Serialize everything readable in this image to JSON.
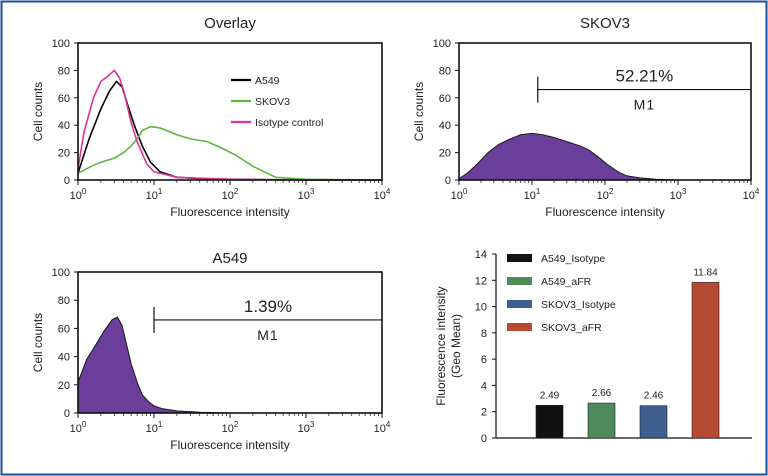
{
  "chart_data": [
    {
      "id": "overlay",
      "type": "histogram-overlay",
      "title": "Overlay",
      "xlabel": "Fluorescence intensity",
      "ylabel": "Cell counts",
      "x_scale": "log10",
      "xlim": [
        1,
        10000
      ],
      "ylim": [
        0,
        100
      ],
      "x_ticks": [
        "10",
        "10",
        "10",
        "10",
        "10"
      ],
      "x_tick_exponents": [
        "0",
        "1",
        "2",
        "3",
        "4"
      ],
      "y_ticks": [
        "0",
        "20",
        "40",
        "60",
        "80",
        "100"
      ],
      "legend": [
        {
          "name": "A549",
          "color": "#000000"
        },
        {
          "name": "SKOV3",
          "color": "#5cb83c"
        },
        {
          "name": "Isotype control",
          "color": "#e0339a"
        }
      ],
      "series": [
        {
          "name": "A549",
          "color": "#000000",
          "x": [
            1,
            1.4,
            2,
            2.6,
            3.2,
            3.8,
            4.5,
            5.5,
            7,
            9,
            12,
            20,
            40,
            100,
            1000,
            10000
          ],
          "y": [
            5,
            30,
            52,
            65,
            72,
            68,
            55,
            40,
            25,
            13,
            6,
            2,
            1,
            0.5,
            0,
            0
          ]
        },
        {
          "name": "SKOV3",
          "color": "#5cb83c",
          "x": [
            1,
            1.5,
            2,
            3,
            4,
            5,
            6,
            7,
            9,
            12,
            20,
            30,
            50,
            80,
            120,
            200,
            400,
            1000,
            10000
          ],
          "y": [
            5,
            10,
            13,
            16,
            20,
            25,
            30,
            36,
            39,
            38,
            33,
            30,
            28,
            23,
            18,
            10,
            2,
            0.5,
            0
          ]
        },
        {
          "name": "Isotype control",
          "color": "#e0339a",
          "x": [
            1,
            1.2,
            1.6,
            2,
            2.5,
            3,
            3.5,
            4,
            5,
            6,
            8,
            10,
            20,
            100,
            1000,
            10000
          ],
          "y": [
            8,
            35,
            60,
            72,
            76,
            80,
            75,
            65,
            42,
            28,
            12,
            6,
            2,
            0.5,
            0,
            0
          ]
        }
      ]
    },
    {
      "id": "skov3",
      "type": "histogram",
      "title": "SKOV3",
      "xlabel": "Fluorescence intensity",
      "ylabel": "Cell counts",
      "x_scale": "log10",
      "xlim": [
        1,
        10000
      ],
      "ylim": [
        0,
        100
      ],
      "x_ticks": [
        "10",
        "10",
        "10",
        "10",
        "10"
      ],
      "x_tick_exponents": [
        "0",
        "1",
        "2",
        "3",
        "4"
      ],
      "y_ticks": [
        "0",
        "20",
        "40",
        "60",
        "80",
        "100"
      ],
      "fill": "#6a3e9a",
      "marker": {
        "label": "M1",
        "percent": "52.21%",
        "x_start": 12,
        "x_end": 10000
      },
      "series": [
        {
          "name": "SKOV3",
          "x": [
            1,
            1.3,
            1.8,
            2.5,
            3.5,
            5,
            7,
            10,
            14,
            20,
            30,
            45,
            60,
            80,
            110,
            150,
            200,
            300,
            500,
            1000,
            10000
          ],
          "y": [
            1,
            5,
            12,
            20,
            26,
            30,
            33,
            34,
            33,
            31,
            28,
            25,
            22,
            17,
            11,
            6,
            3,
            1.5,
            0.5,
            0,
            0
          ]
        }
      ]
    },
    {
      "id": "a549",
      "type": "histogram",
      "title": "A549",
      "xlabel": "Fluorescence intensity",
      "ylabel": "Cell counts",
      "x_scale": "log10",
      "xlim": [
        1,
        10000
      ],
      "ylim": [
        0,
        100
      ],
      "x_ticks": [
        "10",
        "10",
        "10",
        "10",
        "10"
      ],
      "x_tick_exponents": [
        "0",
        "1",
        "2",
        "3",
        "4"
      ],
      "y_ticks": [
        "0",
        "20",
        "40",
        "60",
        "80",
        "100"
      ],
      "fill": "#6a3e9a",
      "marker": {
        "label": "M1",
        "percent": "1.39%",
        "x_start": 10,
        "x_end": 10000
      },
      "series": [
        {
          "name": "A549",
          "x": [
            1,
            1.3,
            1.7,
            2.2,
            2.8,
            3.3,
            3.8,
            4.3,
            5,
            6,
            7,
            8.5,
            10,
            13,
            20,
            40,
            100,
            1000,
            10000
          ],
          "y": [
            22,
            38,
            48,
            58,
            66,
            68,
            62,
            50,
            35,
            22,
            13,
            8,
            5,
            3,
            1.5,
            0.5,
            0,
            0,
            0
          ]
        }
      ]
    },
    {
      "id": "geomean",
      "type": "bar",
      "title": "",
      "xlabel": "",
      "ylabel": "Fluorescence intensity",
      "ylabel2": "(Geo Mean)",
      "ylim": [
        0,
        14
      ],
      "y_ticks": [
        "0",
        "2",
        "4",
        "6",
        "8",
        "10",
        "12",
        "14"
      ],
      "categories": [
        "A549_Isotype",
        "A549_aFR",
        "SKOV3_Isotype",
        "SKOV3_aFR"
      ],
      "values": [
        2.49,
        2.66,
        2.46,
        11.84
      ],
      "value_labels": [
        "2.49",
        "2.66",
        "2.46",
        "11.84"
      ],
      "colors": [
        "#111111",
        "#4e8a5a",
        "#3f5f8f",
        "#b84a33"
      ],
      "legend": [
        {
          "name": "A549_Isotype",
          "color": "#111111"
        },
        {
          "name": "A549_aFR",
          "color": "#4e8a5a"
        },
        {
          "name": "SKOV3_Isotype",
          "color": "#3f5f8f"
        },
        {
          "name": "SKOV3_aFR",
          "color": "#b84a33"
        }
      ]
    }
  ]
}
